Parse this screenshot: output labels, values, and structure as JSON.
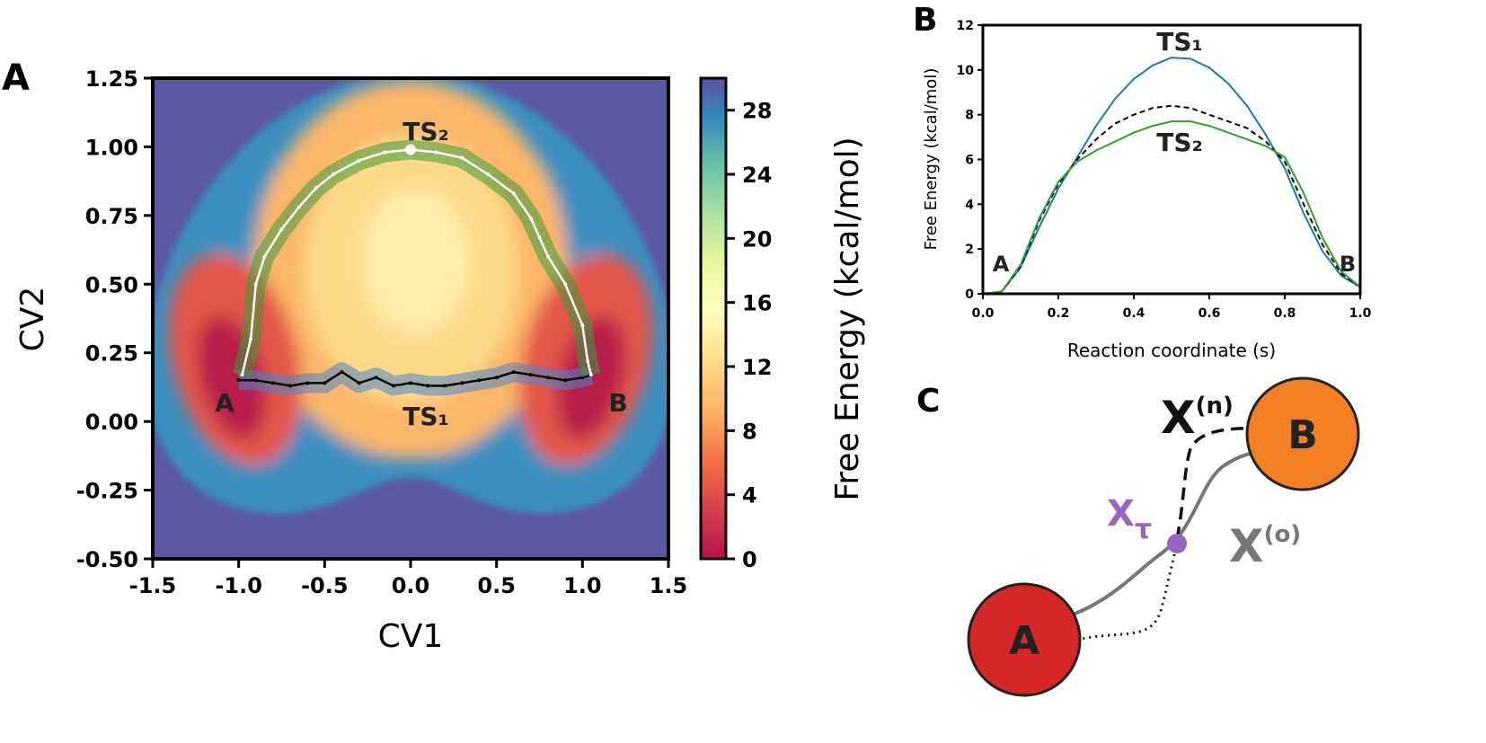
{
  "chart_data": [
    {
      "type": "contour",
      "panel_label": "A",
      "xlabel": "CV1",
      "ylabel": "CV2",
      "xlim": [
        -1.5,
        1.5
      ],
      "xticks": [
        -1.5,
        {
          "value": -1,
          "label": "-1.0"
        },
        -0.5,
        {
          "value": 0,
          "label": "0.0"
        },
        0.5,
        {
          "value": 1,
          "label": "1.0"
        },
        1.5
      ],
      "ylim": [
        -0.5,
        1.25
      ],
      "yticks": [
        {
          "value": -0.5,
          "label": "-0.50"
        },
        -0.25,
        {
          "value": 0,
          "label": "0.00"
        },
        0.25,
        {
          "value": 0.5,
          "label": "0.50"
        },
        0.75,
        {
          "value": 1,
          "label": "1.00"
        },
        1.25
      ],
      "colorbar": {
        "label": "Free Energy (kcal/mol)",
        "lim": [
          0,
          30
        ],
        "ticks": [
          0,
          4,
          8,
          12,
          16,
          20,
          24,
          28
        ]
      },
      "series": [
        {
          "color": "#000000",
          "band_color": "#4a86c8",
          "x": [
            -1,
            -0.9,
            -0.8,
            -0.7,
            -0.6,
            -0.5,
            -0.4,
            -0.3,
            -0.2,
            -0.1,
            0,
            0.1,
            0.2,
            0.3,
            0.4,
            0.5,
            0.6,
            0.7,
            0.8,
            0.9,
            1,
            1.05
          ],
          "y": [
            0.15,
            0.15,
            0.14,
            0.13,
            0.14,
            0.14,
            0.18,
            0.14,
            0.16,
            0.13,
            0.14,
            0.13,
            0.13,
            0.14,
            0.15,
            0.16,
            0.18,
            0.17,
            0.16,
            0.15,
            0.16,
            0.17
          ]
        },
        {
          "color": "#ffffff",
          "band_color": "#3c9a3c",
          "x": [
            -0.98,
            -0.93,
            -0.9,
            -0.85,
            -0.75,
            -0.65,
            -0.55,
            -0.45,
            -0.3,
            -0.15,
            0,
            0.15,
            0.3,
            0.45,
            0.6,
            0.7,
            0.75,
            0.8,
            0.9,
            1,
            1.03,
            1.05
          ],
          "y": [
            0.17,
            0.3,
            0.5,
            0.6,
            0.7,
            0.78,
            0.85,
            0.9,
            0.95,
            0.98,
            0.99,
            0.98,
            0.96,
            0.9,
            0.83,
            0.74,
            0.67,
            0.6,
            0.5,
            0.35,
            0.22,
            0.17
          ]
        }
      ],
      "annotations": [
        "TS₂",
        "TS₁",
        "A",
        "B"
      ]
    },
    {
      "type": "line",
      "panel_label": "B",
      "xlabel": "Reaction coordinate (s)",
      "ylabel": "Free Energy (kcal/mol)",
      "xlim": [
        0,
        1
      ],
      "xticks": [
        {
          "value": 0,
          "label": "0.0"
        },
        0.2,
        0.4,
        0.6,
        0.8,
        {
          "value": 1,
          "label": "1.0"
        }
      ],
      "ylim": [
        0,
        12
      ],
      "yticks": [
        0,
        2,
        4,
        6,
        8,
        10,
        12
      ],
      "x": [
        0,
        0.05,
        0.1,
        0.15,
        0.2,
        0.25,
        0.3,
        0.35,
        0.4,
        0.45,
        0.5,
        0.55,
        0.6,
        0.65,
        0.7,
        0.75,
        0.8,
        0.85,
        0.9,
        0.95,
        1
      ],
      "series": [
        {
          "color": "#1f77b4",
          "dash": false,
          "values": [
            0,
            0.1,
            1.2,
            3,
            4.7,
            6.1,
            7.5,
            8.7,
            9.6,
            10.2,
            10.55,
            10.5,
            10.1,
            9.4,
            8.4,
            7.1,
            5.6,
            3.6,
            1.9,
            0.8,
            0.3
          ]
        },
        {
          "color": "#000000",
          "dash": true,
          "values": [
            0,
            0.1,
            1.2,
            3.3,
            4.9,
            6,
            6.9,
            7.6,
            8,
            8.3,
            8.4,
            8.3,
            8,
            7.7,
            7.4,
            6.8,
            5.9,
            4,
            2.2,
            0.9,
            0.3
          ]
        },
        {
          "color": "#2ca02c",
          "dash": false,
          "values": [
            0,
            0.1,
            1.3,
            3.4,
            5,
            5.9,
            6.4,
            6.8,
            7.2,
            7.5,
            7.7,
            7.7,
            7.5,
            7.2,
            6.9,
            6.6,
            6.1,
            4.5,
            2.5,
            1,
            0.3
          ]
        }
      ],
      "annotations": [
        "TS₁",
        "TS₂",
        "A",
        "B"
      ]
    }
  ],
  "diagram": {
    "panel_label": "C",
    "nodes": [
      {
        "label": "A"
      },
      {
        "label": "B"
      }
    ],
    "labels": [
      {
        "base": "X",
        "sup": "(n)"
      },
      {
        "base": "X",
        "sub": "τ"
      },
      {
        "base": "X",
        "sup": "(o)"
      }
    ]
  }
}
